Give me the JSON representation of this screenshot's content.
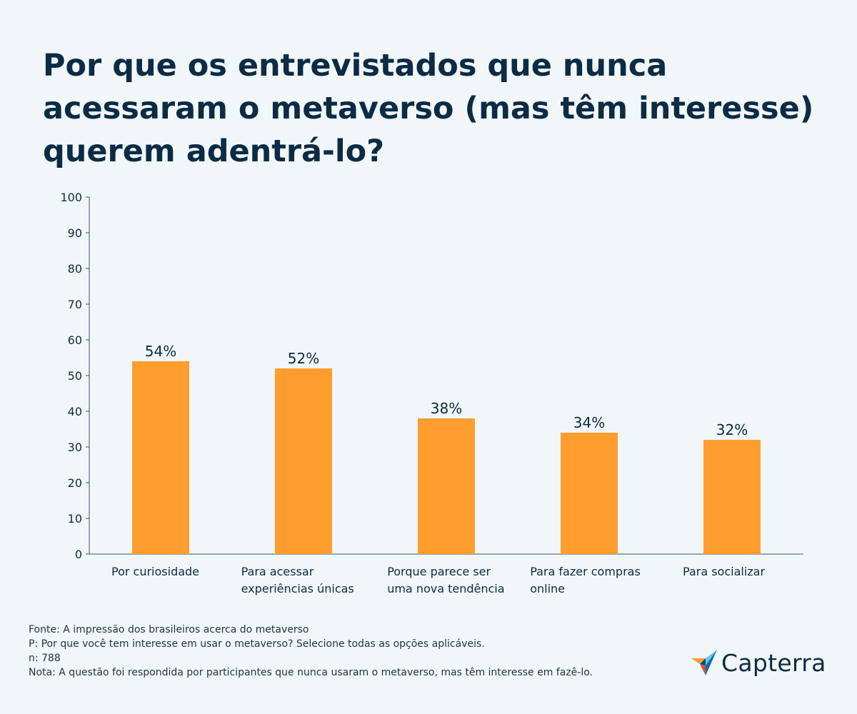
{
  "title": "Por que os entrevistados que nunca acessaram o metaverso (mas têm interesse) querem adentrá-lo?",
  "chart_data": {
    "type": "bar",
    "title": "Por que os entrevistados que nunca acessaram o metaverso (mas têm interesse) querem adentrá-lo?",
    "categories": [
      [
        "Por curiosidade"
      ],
      [
        "Para acessar",
        "experiências únicas"
      ],
      [
        "Porque parece ser",
        "uma nova tendência"
      ],
      [
        "Para fazer compras",
        "online"
      ],
      [
        "Para socializar"
      ]
    ],
    "values": [
      54,
      52,
      38,
      34,
      32
    ],
    "value_labels": [
      "54%",
      "52%",
      "38%",
      "34%",
      "32%"
    ],
    "yticks": [
      0,
      10,
      20,
      30,
      40,
      50,
      60,
      70,
      80,
      90,
      100
    ],
    "ylim": [
      0,
      100
    ],
    "xlabel": "",
    "ylabel": "",
    "bar_color": "#ff9d2e",
    "grid": false
  },
  "footnotes": {
    "source": "Fonte: A impressão dos brasileiros acerca do metaverso",
    "question": "P: Por que você tem interesse em usar o metaverso? Selecione todas as opções aplicáveis.",
    "n": "n: 788",
    "note": "Nota: A questão foi respondida por participantes que nunca usaram o metaverso, mas têm interesse em fazê-lo."
  },
  "logo": {
    "text": "Capterra",
    "icon": "capterra-arrow-icon"
  },
  "colors": {
    "background": "#f1f6f8",
    "text": "#0c2b44",
    "bar": "#ff9d2e"
  }
}
